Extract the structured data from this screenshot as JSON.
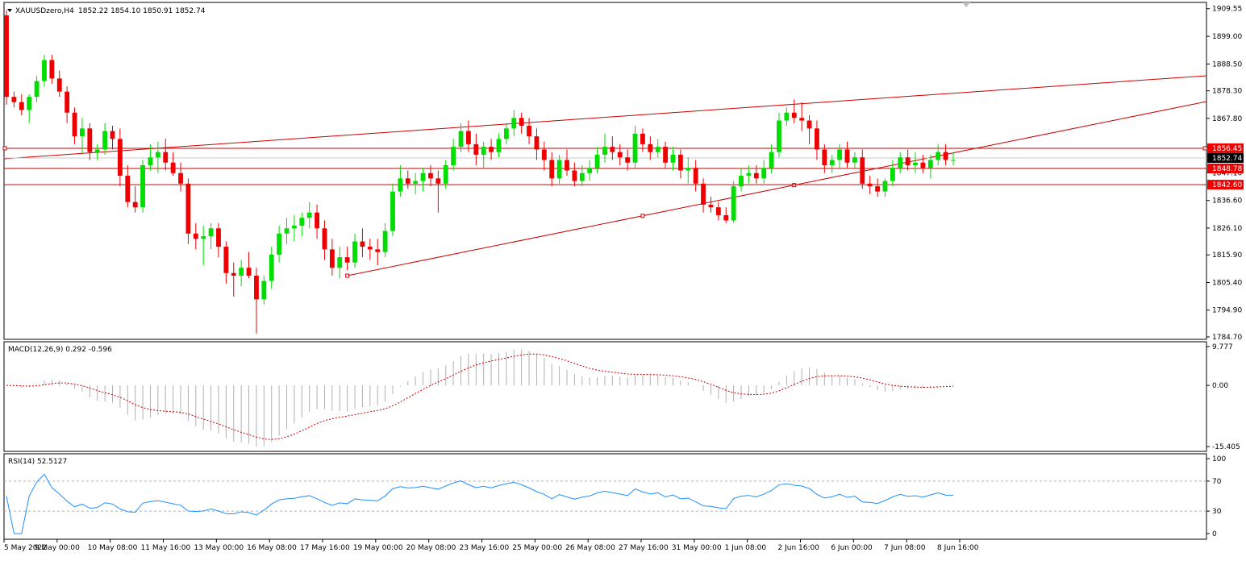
{
  "header": {
    "symbol": "XAUUSDzero,H4",
    "ohlc": "1852.22 1854.10 1850.91 1852.74"
  },
  "chart_data": {
    "type": "candlestick",
    "symbol": "XAUUSDzero",
    "timeframe": "H4",
    "ylim": [
      1784.7,
      1911.0
    ],
    "y_ticks": [
      1909.55,
      1899.0,
      1888.5,
      1878.3,
      1867.8,
      1857.1,
      1847.1,
      1836.6,
      1826.1,
      1815.9,
      1805.4,
      1794.9,
      1784.7
    ],
    "x_ticks": [
      "5 May 2022",
      "9 May 00:00",
      "10 May 08:00",
      "11 May 16:00",
      "13 May 00:00",
      "16 May 08:00",
      "17 May 16:00",
      "19 May 00:00",
      "20 May 08:00",
      "23 May 16:00",
      "25 May 00:00",
      "26 May 08:00",
      "27 May 16:00",
      "31 May 00:00",
      "1 Jun 08:00",
      "2 Jun 16:00",
      "6 Jun 00:00",
      "7 Jun 08:00",
      "8 Jun 16:00"
    ],
    "current_price": 1852.74,
    "horizontal_levels": [
      1856.45,
      1848.78,
      1842.6
    ],
    "colors": {
      "bull": "#00dd00",
      "bear": "#ee0000",
      "trend": "#cc0000",
      "macd_hist": "#b0b0b0",
      "macd_signal": "#cc0000",
      "rsi": "#1e90ff",
      "price_label": "#ee0000",
      "current_label": "#000000"
    },
    "candles": [
      [
        1907,
        1909,
        1873,
        1876
      ],
      [
        1876,
        1878,
        1872,
        1874
      ],
      [
        1874,
        1877,
        1869,
        1871
      ],
      [
        1871,
        1877,
        1866,
        1876
      ],
      [
        1876,
        1884,
        1874,
        1882
      ],
      [
        1882,
        1892,
        1880,
        1890
      ],
      [
        1890,
        1892,
        1881,
        1883
      ],
      [
        1883,
        1886,
        1876,
        1878
      ],
      [
        1878,
        1880,
        1866,
        1870
      ],
      [
        1870,
        1872,
        1858,
        1861
      ],
      [
        1861,
        1868,
        1854,
        1864
      ],
      [
        1864,
        1866,
        1852,
        1855
      ],
      [
        1855,
        1858,
        1852,
        1856
      ],
      [
        1856,
        1866,
        1854,
        1863
      ],
      [
        1863,
        1865,
        1856,
        1860
      ],
      [
        1860,
        1864,
        1842,
        1846
      ],
      [
        1846,
        1850,
        1834,
        1836
      ],
      [
        1836,
        1842,
        1832,
        1834
      ],
      [
        1834,
        1852,
        1832,
        1850
      ],
      [
        1850,
        1858,
        1848,
        1853
      ],
      [
        1853,
        1859,
        1847,
        1855
      ],
      [
        1855,
        1860,
        1848,
        1851
      ],
      [
        1851,
        1855,
        1846,
        1847
      ],
      [
        1847,
        1851,
        1840,
        1843
      ],
      [
        1843,
        1845,
        1820,
        1824
      ],
      [
        1824,
        1828,
        1818,
        1822
      ],
      [
        1822,
        1827,
        1812,
        1823
      ],
      [
        1823,
        1828,
        1818,
        1826
      ],
      [
        1826,
        1828,
        1815,
        1819
      ],
      [
        1819,
        1821,
        1805,
        1809
      ],
      [
        1809,
        1813,
        1800,
        1808
      ],
      [
        1808,
        1814,
        1804,
        1811
      ],
      [
        1811,
        1817,
        1807,
        1808
      ],
      [
        1808,
        1811,
        1786,
        1799
      ],
      [
        1799,
        1808,
        1797,
        1806
      ],
      [
        1806,
        1819,
        1803,
        1816
      ],
      [
        1816,
        1827,
        1813,
        1824
      ],
      [
        1824,
        1830,
        1820,
        1826
      ],
      [
        1826,
        1831,
        1821,
        1827
      ],
      [
        1827,
        1832,
        1823,
        1830
      ],
      [
        1830,
        1836,
        1826,
        1832
      ],
      [
        1832,
        1835,
        1822,
        1826
      ],
      [
        1826,
        1829,
        1814,
        1818
      ],
      [
        1818,
        1822,
        1808,
        1811
      ],
      [
        1811,
        1819,
        1807,
        1815
      ],
      [
        1815,
        1819,
        1810,
        1813
      ],
      [
        1813,
        1824,
        1811,
        1821
      ],
      [
        1821,
        1826,
        1815,
        1819
      ],
      [
        1819,
        1822,
        1814,
        1818
      ],
      [
        1818,
        1822,
        1812,
        1817
      ],
      [
        1817,
        1828,
        1815,
        1825
      ],
      [
        1825,
        1843,
        1823,
        1840
      ],
      [
        1840,
        1850,
        1838,
        1845
      ],
      [
        1845,
        1848,
        1841,
        1843
      ],
      [
        1843,
        1847,
        1839,
        1844
      ],
      [
        1844,
        1849,
        1840,
        1847
      ],
      [
        1847,
        1850,
        1842,
        1845
      ],
      [
        1845,
        1848,
        1832,
        1843
      ],
      [
        1843,
        1852,
        1841,
        1850
      ],
      [
        1850,
        1860,
        1848,
        1857
      ],
      [
        1857,
        1866,
        1855,
        1863
      ],
      [
        1863,
        1867,
        1855,
        1858
      ],
      [
        1858,
        1862,
        1850,
        1854
      ],
      [
        1854,
        1859,
        1849,
        1857
      ],
      [
        1857,
        1860,
        1852,
        1855
      ],
      [
        1855,
        1862,
        1853,
        1860
      ],
      [
        1860,
        1866,
        1858,
        1864
      ],
      [
        1864,
        1871,
        1861,
        1868
      ],
      [
        1868,
        1870,
        1862,
        1865
      ],
      [
        1865,
        1868,
        1858,
        1861
      ],
      [
        1861,
        1864,
        1852,
        1856
      ],
      [
        1856,
        1859,
        1848,
        1852
      ],
      [
        1852,
        1855,
        1842,
        1845
      ],
      [
        1845,
        1854,
        1843,
        1852
      ],
      [
        1852,
        1856,
        1846,
        1848
      ],
      [
        1848,
        1851,
        1842,
        1844
      ],
      [
        1844,
        1850,
        1842,
        1847
      ],
      [
        1847,
        1852,
        1844,
        1849
      ],
      [
        1849,
        1857,
        1847,
        1854
      ],
      [
        1854,
        1862,
        1851,
        1857
      ],
      [
        1857,
        1861,
        1852,
        1855
      ],
      [
        1855,
        1858,
        1850,
        1853
      ],
      [
        1853,
        1856,
        1848,
        1851
      ],
      [
        1851,
        1865,
        1849,
        1862
      ],
      [
        1862,
        1864,
        1855,
        1858
      ],
      [
        1858,
        1861,
        1852,
        1855
      ],
      [
        1855,
        1860,
        1853,
        1857
      ],
      [
        1857,
        1859,
        1849,
        1851
      ],
      [
        1851,
        1857,
        1848,
        1854
      ],
      [
        1854,
        1856,
        1845,
        1848
      ],
      [
        1848,
        1853,
        1843,
        1849
      ],
      [
        1849,
        1852,
        1840,
        1843
      ],
      [
        1843,
        1845,
        1832,
        1835
      ],
      [
        1835,
        1838,
        1832,
        1834
      ],
      [
        1834,
        1836,
        1829,
        1831
      ],
      [
        1831,
        1834,
        1828,
        1829
      ],
      [
        1829,
        1844,
        1828,
        1842
      ],
      [
        1842,
        1849,
        1840,
        1846
      ],
      [
        1846,
        1850,
        1843,
        1847
      ],
      [
        1847,
        1850,
        1843,
        1845
      ],
      [
        1845,
        1852,
        1843,
        1849
      ],
      [
        1849,
        1858,
        1847,
        1855
      ],
      [
        1855,
        1870,
        1853,
        1867
      ],
      [
        1867,
        1872,
        1865,
        1870
      ],
      [
        1870,
        1875,
        1866,
        1868
      ],
      [
        1868,
        1874,
        1863,
        1867
      ],
      [
        1867,
        1869,
        1858,
        1864
      ],
      [
        1864,
        1867,
        1852,
        1856
      ],
      [
        1856,
        1858,
        1847,
        1850
      ],
      [
        1850,
        1854,
        1847,
        1852
      ],
      [
        1852,
        1858,
        1849,
        1856
      ],
      [
        1856,
        1859,
        1849,
        1851
      ],
      [
        1851,
        1855,
        1849,
        1853
      ],
      [
        1853,
        1856,
        1841,
        1843
      ],
      [
        1843,
        1846,
        1839,
        1842
      ],
      [
        1842,
        1845,
        1838,
        1840
      ],
      [
        1840,
        1845,
        1838,
        1844
      ],
      [
        1844,
        1852,
        1842,
        1849
      ],
      [
        1849,
        1855,
        1847,
        1853
      ],
      [
        1853,
        1856,
        1848,
        1850
      ],
      [
        1850,
        1855,
        1847,
        1851
      ],
      [
        1851,
        1854,
        1847,
        1849
      ],
      [
        1849,
        1854,
        1845,
        1852
      ],
      [
        1852,
        1858,
        1850,
        1855
      ],
      [
        1855,
        1858,
        1850,
        1852
      ],
      [
        1852,
        1855,
        1850,
        1852
      ]
    ],
    "macd": {
      "label": "MACD(12,26,9) 0.292 -0.596",
      "ylim": [
        -15.405,
        9.777
      ],
      "ticks": [
        9.777,
        0.0,
        -15.405
      ]
    },
    "rsi": {
      "label": "RSI(14) 52.5127",
      "ylim": [
        0,
        100
      ],
      "ticks": [
        100,
        70,
        30,
        0
      ],
      "levels": [
        70,
        30
      ]
    }
  }
}
